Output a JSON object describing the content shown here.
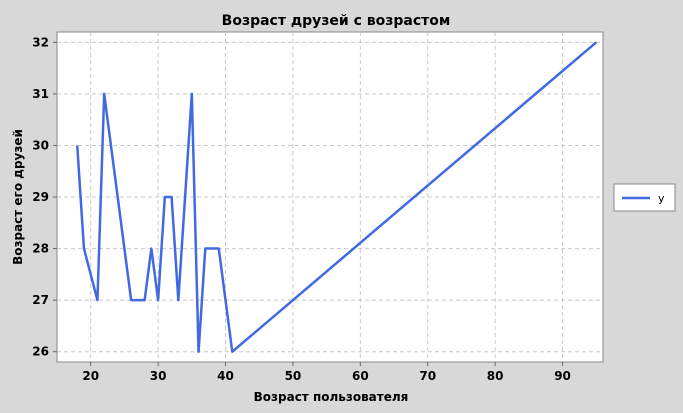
{
  "chart_data": {
    "type": "line",
    "title": "Возраст друзей с возрастом",
    "xlabel": "Возраст пользователя",
    "ylabel": "Возраст его друзей",
    "xlim": [
      15,
      96
    ],
    "ylim": [
      25.8,
      32.2
    ],
    "x_ticks": [
      20,
      30,
      40,
      50,
      60,
      70,
      80,
      90
    ],
    "y_ticks": [
      26,
      27,
      28,
      29,
      30,
      31,
      32
    ],
    "grid": true,
    "legend_position": "right",
    "series": [
      {
        "name": "y",
        "color": "#4169e1",
        "x": [
          18,
          19,
          21,
          22,
          26,
          28,
          29,
          30,
          31,
          32,
          33,
          35,
          36,
          37,
          39,
          41,
          95
        ],
        "y": [
          30,
          28,
          27,
          31,
          27,
          27,
          28,
          27,
          29,
          29,
          27,
          31,
          26,
          28,
          28,
          26,
          32
        ]
      }
    ]
  }
}
